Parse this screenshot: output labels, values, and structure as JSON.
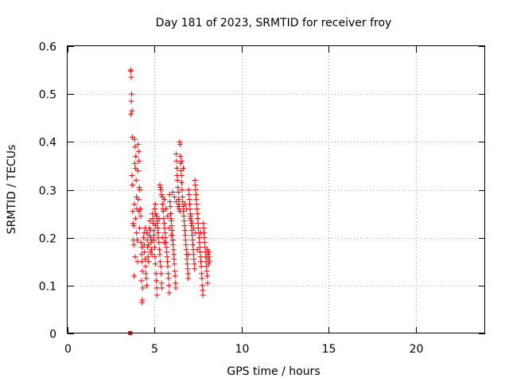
{
  "chart_data": {
    "type": "scatter",
    "title": "Day 181 of 2023, SRMTID for receiver froy",
    "xlabel": "GPS time / hours",
    "ylabel": "SRMTID / TECUs",
    "xlim": [
      0,
      24
    ],
    "ylim": [
      0,
      0.6
    ],
    "x_ticks": [
      0,
      5,
      10,
      15,
      20
    ],
    "x_tick_labels": [
      "0",
      "5",
      "10",
      "15",
      "20"
    ],
    "y_ticks": [
      0,
      0.1,
      0.2,
      0.3,
      0.4,
      0.5,
      0.6
    ],
    "y_tick_labels": [
      "0",
      "0.1",
      "0.2",
      "0.3",
      "0.4",
      "0.5",
      "0.6"
    ],
    "grid": true,
    "marker": "+",
    "point_color": "#ff0000",
    "zero_marker": {
      "x": 3.6,
      "y": 0.0
    },
    "series": [
      {
        "name": "SRMTID",
        "points": [
          [
            3.62,
            0.55
          ],
          [
            3.63,
            0.548
          ],
          [
            3.66,
            0.535
          ],
          [
            3.68,
            0.5
          ],
          [
            3.66,
            0.485
          ],
          [
            3.7,
            0.465
          ],
          [
            3.64,
            0.458
          ],
          [
            3.72,
            0.41
          ],
          [
            3.7,
            0.33
          ],
          [
            3.72,
            0.31
          ],
          [
            3.74,
            0.255
          ],
          [
            3.76,
            0.23
          ],
          [
            3.78,
            0.195
          ],
          [
            3.8,
            0.185
          ],
          [
            3.82,
            0.12
          ],
          [
            3.8,
            0.225
          ],
          [
            3.85,
            0.405
          ],
          [
            3.88,
            0.39
          ],
          [
            3.92,
            0.37
          ],
          [
            3.86,
            0.355
          ],
          [
            3.9,
            0.345
          ],
          [
            3.94,
            0.32
          ],
          [
            3.96,
            0.285
          ],
          [
            3.98,
            0.26
          ],
          [
            3.9,
            0.24
          ],
          [
            3.84,
            0.27
          ],
          [
            3.96,
            0.21
          ],
          [
            4.0,
            0.195
          ],
          [
            3.88,
            0.16
          ],
          [
            4.02,
            0.15
          ],
          [
            4.05,
            0.395
          ],
          [
            4.08,
            0.38
          ],
          [
            4.1,
            0.36
          ],
          [
            4.04,
            0.34
          ],
          [
            4.12,
            0.305
          ],
          [
            4.15,
            0.3
          ],
          [
            4.06,
            0.28
          ],
          [
            4.1,
            0.255
          ],
          [
            4.14,
            0.22
          ],
          [
            4.18,
            0.26
          ],
          [
            4.2,
            0.245
          ],
          [
            4.22,
            0.19
          ],
          [
            4.25,
            0.165
          ],
          [
            4.28,
            0.18
          ],
          [
            4.26,
            0.15
          ],
          [
            4.3,
            0.13
          ],
          [
            4.24,
            0.11
          ],
          [
            4.32,
            0.095
          ],
          [
            4.3,
            0.07
          ],
          [
            4.28,
            0.065
          ],
          [
            4.36,
            0.2
          ],
          [
            4.4,
            0.185
          ],
          [
            4.42,
            0.17
          ],
          [
            4.45,
            0.155
          ],
          [
            4.48,
            0.14
          ],
          [
            4.5,
            0.125
          ],
          [
            4.52,
            0.115
          ],
          [
            4.55,
            0.1
          ],
          [
            4.4,
            0.21
          ],
          [
            4.46,
            0.22
          ],
          [
            4.58,
            0.195
          ],
          [
            4.6,
            0.18
          ],
          [
            4.62,
            0.16
          ],
          [
            4.65,
            0.15
          ],
          [
            4.68,
            0.205
          ],
          [
            4.7,
            0.22
          ],
          [
            4.72,
            0.235
          ],
          [
            4.75,
            0.215
          ],
          [
            4.78,
            0.2
          ],
          [
            4.8,
            0.19
          ],
          [
            4.82,
            0.175
          ],
          [
            4.85,
            0.165
          ],
          [
            4.88,
            0.25
          ],
          [
            4.9,
            0.24
          ],
          [
            4.92,
            0.23
          ],
          [
            4.95,
            0.205
          ],
          [
            4.98,
            0.195
          ],
          [
            5.0,
            0.18
          ],
          [
            5.02,
            0.16
          ],
          [
            5.05,
            0.145
          ],
          [
            5.08,
            0.125
          ],
          [
            5.1,
            0.11
          ],
          [
            5.12,
            0.095
          ],
          [
            5.14,
            0.08
          ],
          [
            5.0,
            0.26
          ],
          [
            5.04,
            0.27
          ],
          [
            5.06,
            0.25
          ],
          [
            5.1,
            0.245
          ],
          [
            5.15,
            0.23
          ],
          [
            5.18,
            0.22
          ],
          [
            5.2,
            0.21
          ],
          [
            5.22,
            0.2
          ],
          [
            5.25,
            0.19
          ],
          [
            5.28,
            0.175
          ],
          [
            5.3,
            0.165
          ],
          [
            5.32,
            0.15
          ],
          [
            5.35,
            0.14
          ],
          [
            5.38,
            0.125
          ],
          [
            5.4,
            0.105
          ],
          [
            5.42,
            0.095
          ],
          [
            5.3,
            0.31
          ],
          [
            5.33,
            0.305
          ],
          [
            5.36,
            0.3
          ],
          [
            5.4,
            0.29
          ],
          [
            5.44,
            0.285
          ],
          [
            5.46,
            0.27
          ],
          [
            5.48,
            0.26
          ],
          [
            5.5,
            0.255
          ],
          [
            5.52,
            0.24
          ],
          [
            5.55,
            0.23
          ],
          [
            5.58,
            0.22
          ],
          [
            5.6,
            0.21
          ],
          [
            5.62,
            0.2
          ],
          [
            5.65,
            0.19
          ],
          [
            5.68,
            0.18
          ],
          [
            5.7,
            0.17
          ],
          [
            5.72,
            0.16
          ],
          [
            5.74,
            0.15
          ],
          [
            5.76,
            0.14
          ],
          [
            5.78,
            0.125
          ],
          [
            5.8,
            0.115
          ],
          [
            5.82,
            0.1
          ],
          [
            5.84,
            0.085
          ],
          [
            5.86,
            0.29
          ],
          [
            5.88,
            0.275
          ],
          [
            5.9,
            0.265
          ],
          [
            5.92,
            0.25
          ],
          [
            5.94,
            0.24
          ],
          [
            5.96,
            0.235
          ],
          [
            5.98,
            0.225
          ],
          [
            6.0,
            0.215
          ],
          [
            6.02,
            0.205
          ],
          [
            6.04,
            0.195
          ],
          [
            6.06,
            0.185
          ],
          [
            6.08,
            0.175
          ],
          [
            6.1,
            0.165
          ],
          [
            6.12,
            0.155
          ],
          [
            6.14,
            0.145
          ],
          [
            6.16,
            0.13
          ],
          [
            6.18,
            0.12
          ],
          [
            6.2,
            0.105
          ],
          [
            6.22,
            0.095
          ],
          [
            6.24,
            0.375
          ],
          [
            6.26,
            0.36
          ],
          [
            6.28,
            0.345
          ],
          [
            6.3,
            0.33
          ],
          [
            6.32,
            0.32
          ],
          [
            6.34,
            0.305
          ],
          [
            6.36,
            0.295
          ],
          [
            6.38,
            0.28
          ],
          [
            6.4,
            0.27
          ],
          [
            6.42,
            0.26
          ],
          [
            6.44,
            0.4
          ],
          [
            6.46,
            0.395
          ],
          [
            6.48,
            0.37
          ],
          [
            6.5,
            0.355
          ],
          [
            6.52,
            0.34
          ],
          [
            6.54,
            0.33
          ],
          [
            6.56,
            0.315
          ],
          [
            6.58,
            0.3
          ],
          [
            6.6,
            0.285
          ],
          [
            6.62,
            0.275
          ],
          [
            6.64,
            0.265
          ],
          [
            6.66,
            0.255
          ],
          [
            6.68,
            0.245
          ],
          [
            6.7,
            0.235
          ],
          [
            6.72,
            0.225
          ],
          [
            6.74,
            0.215
          ],
          [
            6.76,
            0.205
          ],
          [
            6.78,
            0.195
          ],
          [
            6.8,
            0.185
          ],
          [
            6.82,
            0.175
          ],
          [
            6.84,
            0.165
          ],
          [
            6.86,
            0.155
          ],
          [
            6.88,
            0.145
          ],
          [
            6.9,
            0.135
          ],
          [
            6.92,
            0.125
          ],
          [
            6.94,
            0.115
          ],
          [
            6.96,
            0.3
          ],
          [
            6.98,
            0.29
          ],
          [
            7.0,
            0.28
          ],
          [
            7.02,
            0.27
          ],
          [
            7.04,
            0.26
          ],
          [
            7.06,
            0.25
          ],
          [
            7.08,
            0.245
          ],
          [
            7.1,
            0.235
          ],
          [
            7.12,
            0.225
          ],
          [
            7.14,
            0.215
          ],
          [
            7.16,
            0.205
          ],
          [
            7.18,
            0.195
          ],
          [
            7.2,
            0.185
          ],
          [
            7.22,
            0.175
          ],
          [
            7.24,
            0.165
          ],
          [
            7.26,
            0.155
          ],
          [
            7.28,
            0.145
          ],
          [
            7.3,
            0.135
          ],
          [
            7.32,
            0.32
          ],
          [
            7.34,
            0.31
          ],
          [
            7.36,
            0.3
          ],
          [
            7.38,
            0.29
          ],
          [
            7.4,
            0.28
          ],
          [
            7.42,
            0.27
          ],
          [
            7.44,
            0.26
          ],
          [
            7.46,
            0.25
          ],
          [
            7.48,
            0.24
          ],
          [
            7.5,
            0.23
          ],
          [
            7.52,
            0.22
          ],
          [
            7.54,
            0.21
          ],
          [
            7.56,
            0.2
          ],
          [
            7.58,
            0.19
          ],
          [
            7.6,
            0.18
          ],
          [
            7.62,
            0.17
          ],
          [
            7.64,
            0.16
          ],
          [
            7.66,
            0.15
          ],
          [
            7.68,
            0.14
          ],
          [
            7.7,
            0.125
          ],
          [
            7.72,
            0.115
          ],
          [
            7.74,
            0.1
          ],
          [
            7.76,
            0.09
          ],
          [
            7.78,
            0.08
          ],
          [
            7.8,
            0.23
          ],
          [
            7.82,
            0.22
          ],
          [
            7.84,
            0.21
          ],
          [
            7.86,
            0.2
          ],
          [
            7.88,
            0.19
          ],
          [
            7.9,
            0.18
          ],
          [
            7.92,
            0.17
          ],
          [
            7.94,
            0.16
          ],
          [
            7.96,
            0.15
          ],
          [
            7.98,
            0.14
          ],
          [
            8.0,
            0.13
          ],
          [
            8.02,
            0.12
          ],
          [
            8.04,
            0.175
          ],
          [
            8.06,
            0.165
          ],
          [
            8.08,
            0.155
          ],
          [
            8.1,
            0.145
          ],
          [
            8.12,
            0.17
          ],
          [
            8.14,
            0.16
          ],
          [
            8.16,
            0.15
          ],
          [
            8.05,
            0.105
          ],
          [
            5.55,
            0.28
          ],
          [
            5.65,
            0.26
          ],
          [
            5.75,
            0.245
          ],
          [
            6.05,
            0.295
          ],
          [
            6.15,
            0.285
          ],
          [
            6.25,
            0.275
          ],
          [
            6.55,
            0.36
          ],
          [
            6.65,
            0.345
          ],
          [
            6.35,
            0.265
          ],
          [
            6.45,
            0.255
          ],
          [
            6.75,
            0.27
          ],
          [
            6.85,
            0.26
          ],
          [
            7.05,
            0.24
          ],
          [
            7.15,
            0.23
          ],
          [
            7.25,
            0.22
          ],
          [
            7.35,
            0.21
          ],
          [
            4.55,
            0.21
          ],
          [
            4.65,
            0.185
          ],
          [
            4.75,
            0.17
          ],
          [
            4.85,
            0.195
          ],
          [
            4.95,
            0.215
          ],
          [
            5.05,
            0.225
          ],
          [
            5.15,
            0.235
          ],
          [
            5.25,
            0.24
          ],
          [
            5.45,
            0.2
          ],
          [
            5.55,
            0.19
          ],
          [
            5.85,
            0.22
          ],
          [
            5.95,
            0.205
          ],
          [
            6.05,
            0.195
          ],
          [
            6.95,
            0.165
          ],
          [
            7.45,
            0.175
          ],
          [
            7.65,
            0.21
          ]
        ]
      }
    ]
  }
}
